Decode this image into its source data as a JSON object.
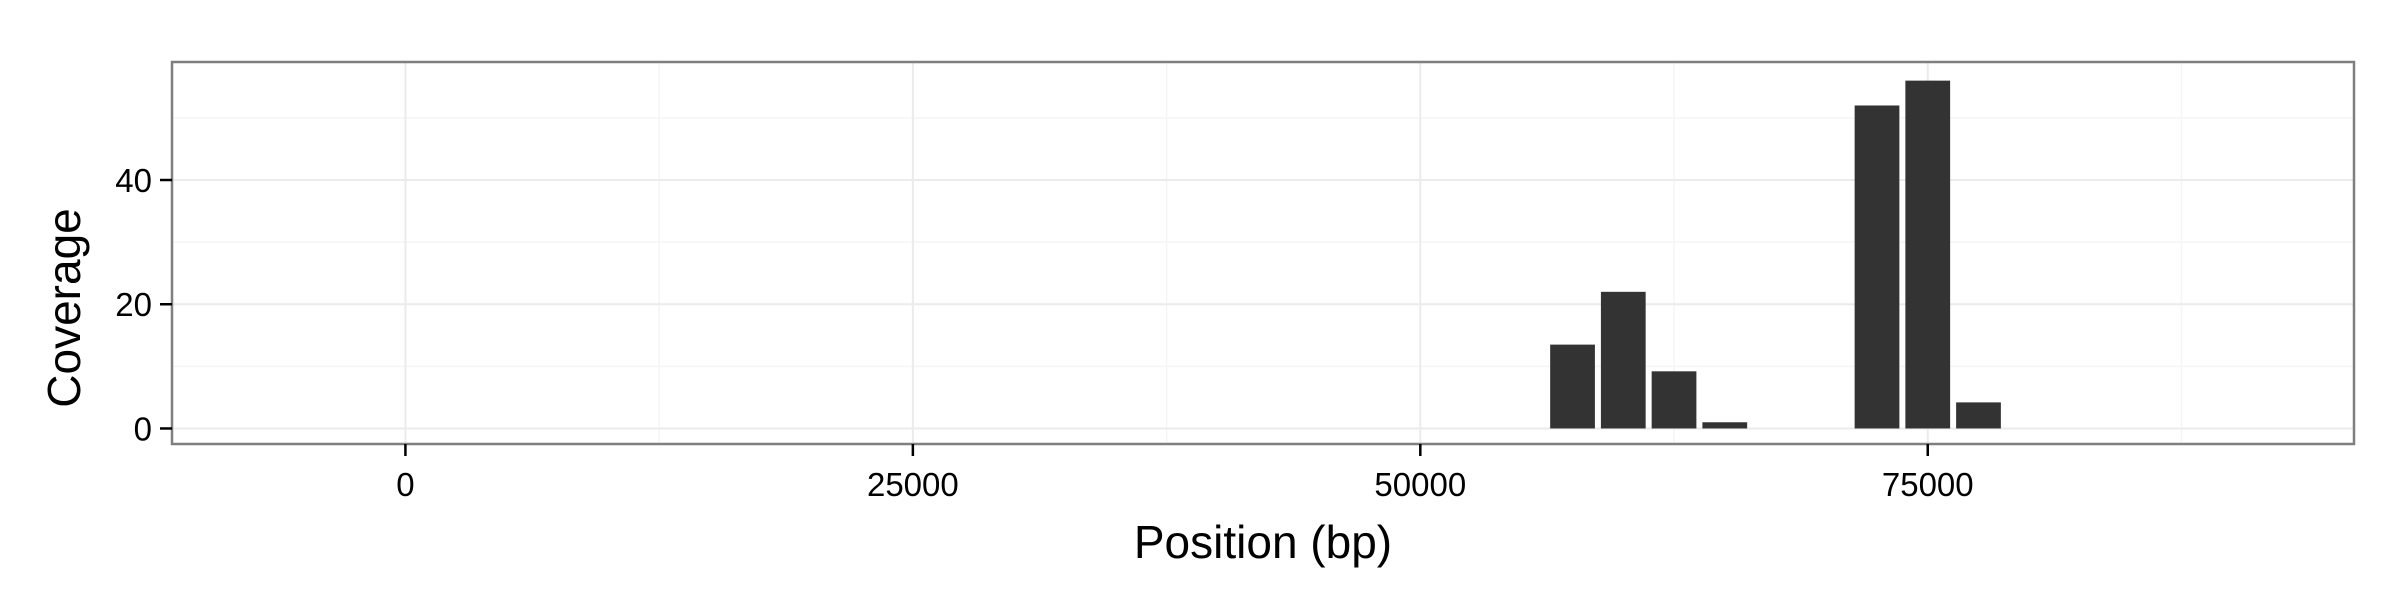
{
  "chart_data": {
    "type": "bar",
    "xlabel": "Position (bp)",
    "ylabel": "Coverage",
    "xlim": [
      -11500,
      96000
    ],
    "ylim": [
      -2.5,
      59
    ],
    "x_ticks": [
      0,
      25000,
      50000,
      75000
    ],
    "x_tick_labels": [
      "0",
      "25000",
      "50000",
      "75000"
    ],
    "y_ticks": [
      0,
      20,
      40
    ],
    "y_tick_labels": [
      "0",
      "20",
      "40"
    ],
    "grid": true,
    "bin_width": 2500,
    "bars": [
      {
        "x": 57500,
        "value": 13.5
      },
      {
        "x": 60000,
        "value": 22
      },
      {
        "x": 62500,
        "value": 9.2
      },
      {
        "x": 65000,
        "value": 1
      },
      {
        "x": 72500,
        "value": 52
      },
      {
        "x": 75000,
        "value": 56
      },
      {
        "x": 77500,
        "value": 4.2
      }
    ],
    "colors": {
      "bar": "#333333",
      "panel_background": "#ffffff",
      "panel_border": "#7f7f7f"
    }
  }
}
